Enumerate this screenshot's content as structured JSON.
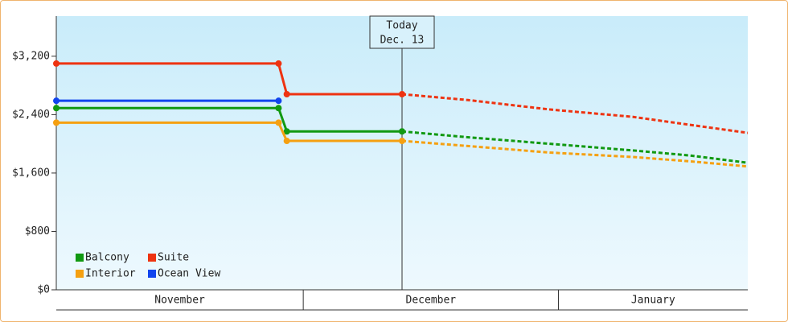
{
  "chart_data": {
    "type": "line",
    "ylim": [
      0,
      3750
    ],
    "yticks": [
      {
        "value": 0,
        "label": "$0"
      },
      {
        "value": 800,
        "label": "$800"
      },
      {
        "value": 1600,
        "label": "$1,600"
      },
      {
        "value": 2400,
        "label": "$2,400"
      },
      {
        "value": 3200,
        "label": "$3,200"
      }
    ],
    "xlim": [
      0,
      84
    ],
    "month_starts": [
      0,
      30,
      61
    ],
    "months": [
      "November",
      "December",
      "January"
    ],
    "x": [
      0,
      27,
      28,
      42
    ],
    "forecast_x": [
      42,
      50,
      60,
      70,
      77,
      84
    ],
    "today": {
      "x": 42,
      "label": "Today",
      "date": "Dec. 13"
    },
    "series": [
      {
        "name": "Balcony",
        "color": "#119911",
        "values": [
          2490,
          2490,
          2170,
          2170
        ],
        "forecast_values": [
          2170,
          2090,
          2000,
          1910,
          1840,
          1740
        ]
      },
      {
        "name": "Suite",
        "color": "#ee3311",
        "values": [
          3100,
          3100,
          2680,
          2680
        ],
        "forecast_values": [
          2680,
          2600,
          2470,
          2370,
          2260,
          2150
        ]
      },
      {
        "name": "Interior",
        "color": "#f5a011",
        "values": [
          2290,
          2290,
          2040,
          2040
        ],
        "forecast_values": [
          2040,
          1970,
          1880,
          1820,
          1760,
          1690
        ]
      },
      {
        "name": "Ocean View",
        "color": "#1144ee",
        "values": [
          2590,
          2590,
          null,
          null
        ],
        "forecast_values": [
          null,
          null,
          null,
          null,
          null,
          null
        ]
      }
    ]
  }
}
